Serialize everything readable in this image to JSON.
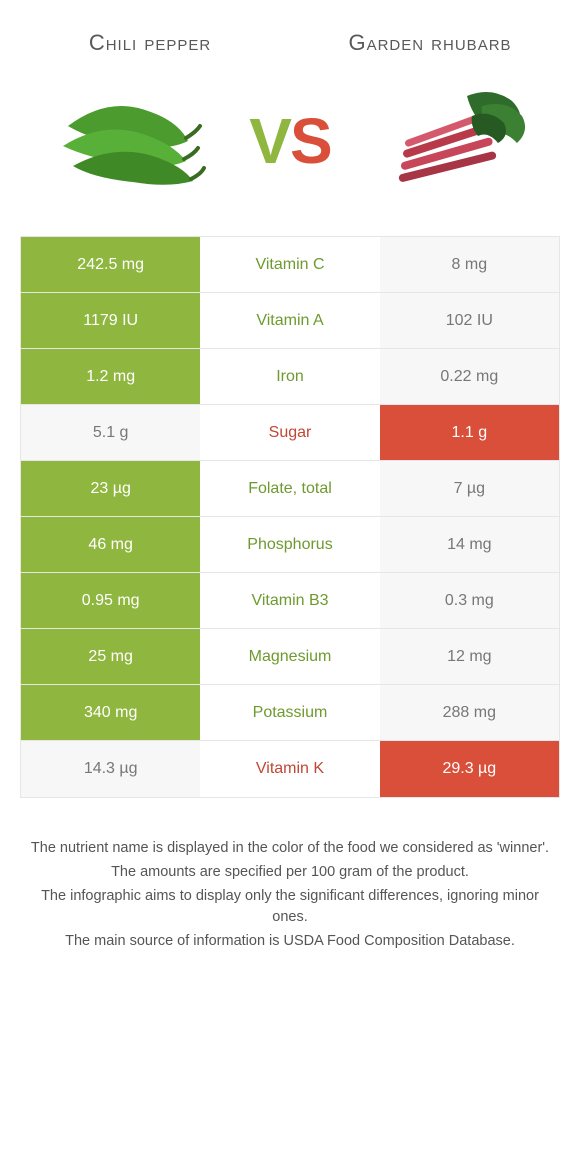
{
  "colors": {
    "left_bg": "#8fb63f",
    "right_bg": "#d94f3a",
    "neutral_bg": "#f7f7f7",
    "left_label": "#6f9a2f",
    "right_label": "#c24733"
  },
  "header": {
    "left_title": "Chili pepper",
    "right_title": "Garden rhubarb",
    "vs_v": "V",
    "vs_s": "S"
  },
  "rows": [
    {
      "nutrient": "Vitamin C",
      "left": "242.5 mg",
      "right": "8 mg",
      "winner": "left"
    },
    {
      "nutrient": "Vitamin A",
      "left": "1179 IU",
      "right": "102 IU",
      "winner": "left"
    },
    {
      "nutrient": "Iron",
      "left": "1.2 mg",
      "right": "0.22 mg",
      "winner": "left"
    },
    {
      "nutrient": "Sugar",
      "left": "5.1 g",
      "right": "1.1 g",
      "winner": "right"
    },
    {
      "nutrient": "Folate, total",
      "left": "23 µg",
      "right": "7 µg",
      "winner": "left"
    },
    {
      "nutrient": "Phosphorus",
      "left": "46 mg",
      "right": "14 mg",
      "winner": "left"
    },
    {
      "nutrient": "Vitamin B3",
      "left": "0.95 mg",
      "right": "0.3 mg",
      "winner": "left"
    },
    {
      "nutrient": "Magnesium",
      "left": "25 mg",
      "right": "12 mg",
      "winner": "left"
    },
    {
      "nutrient": "Potassium",
      "left": "340 mg",
      "right": "288 mg",
      "winner": "left"
    },
    {
      "nutrient": "Vitamin K",
      "left": "14.3 µg",
      "right": "29.3 µg",
      "winner": "right"
    }
  ],
  "footnotes": [
    "The nutrient name is displayed in the color of the food we considered as 'winner'.",
    "The amounts are specified per 100 gram of the product.",
    "The infographic aims to display only the significant differences, ignoring minor ones.",
    "The main source of information is USDA Food Composition Database."
  ]
}
